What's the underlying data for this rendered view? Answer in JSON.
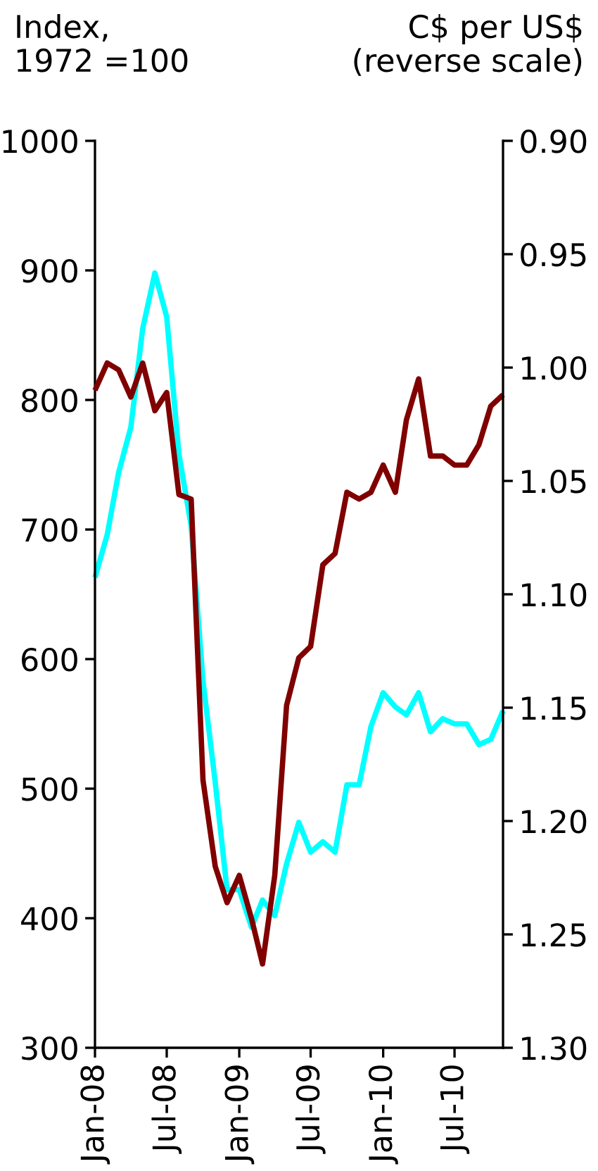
{
  "chart_data": {
    "type": "line",
    "ylabel": "Index,\n1972 =100",
    "y2label": "C$ per US$\n(reverse scale)",
    "x": [
      "2008-01",
      "2008-02",
      "2008-03",
      "2008-04",
      "2008-05",
      "2008-06",
      "2008-07",
      "2008-08",
      "2008-09",
      "2008-10",
      "2008-11",
      "2008-12",
      "2009-01",
      "2009-02",
      "2009-03",
      "2009-04",
      "2009-05",
      "2009-06",
      "2009-07",
      "2009-08",
      "2009-09",
      "2009-10",
      "2009-11",
      "2009-12",
      "2010-01",
      "2010-02",
      "2010-03",
      "2010-04",
      "2010-05",
      "2010-06",
      "2010-07",
      "2010-08",
      "2010-09",
      "2010-10",
      "2010-11"
    ],
    "xlim": [
      "2008-01",
      "2010-11"
    ],
    "xticks": [
      {
        "value": "2008-01",
        "label": "Jan-08"
      },
      {
        "value": "2008-07",
        "label": "Jul-08"
      },
      {
        "value": "2009-01",
        "label": "Jan-09"
      },
      {
        "value": "2009-07",
        "label": "Jul-09"
      },
      {
        "value": "2010-01",
        "label": "Jan-10"
      },
      {
        "value": "2010-07",
        "label": "Jul-10"
      }
    ],
    "ylim": [
      300,
      1000
    ],
    "yticks": [
      300,
      400,
      500,
      600,
      700,
      800,
      900,
      1000
    ],
    "y2lim": [
      1.3,
      0.9
    ],
    "y2ticks": [
      {
        "value": 0.9,
        "label": "0.90"
      },
      {
        "value": 0.95,
        "label": "0.95"
      },
      {
        "value": 1.0,
        "label": "1.00"
      },
      {
        "value": 1.05,
        "label": "1.05"
      },
      {
        "value": 1.1,
        "label": "1.10"
      },
      {
        "value": 1.15,
        "label": "1.15"
      },
      {
        "value": 1.2,
        "label": "1.20"
      },
      {
        "value": 1.25,
        "label": "1.25"
      },
      {
        "value": 1.3,
        "label": "1.30"
      }
    ],
    "series": [
      {
        "color": "#00ffff",
        "values": [
          663,
          696,
          744,
          779,
          855,
          898,
          864,
          758,
          703,
          583,
          505,
          422,
          422,
          393,
          414,
          402,
          442,
          474,
          451,
          459,
          451,
          503,
          503,
          548,
          574,
          563,
          557,
          574,
          544,
          554,
          550,
          550,
          534,
          538,
          560
        ]
      },
      {
        "color": "#800000",
        "axis": "y2",
        "values": [
          1.01,
          0.998,
          1.001,
          1.013,
          0.998,
          1.019,
          1.011,
          1.056,
          1.058,
          1.182,
          1.22,
          1.236,
          1.224,
          1.243,
          1.263,
          1.224,
          1.149,
          1.128,
          1.123,
          1.087,
          1.082,
          1.055,
          1.058,
          1.055,
          1.043,
          1.055,
          1.023,
          1.005,
          1.039,
          1.039,
          1.043,
          1.043,
          1.034,
          1.017,
          1.012
        ]
      }
    ]
  }
}
